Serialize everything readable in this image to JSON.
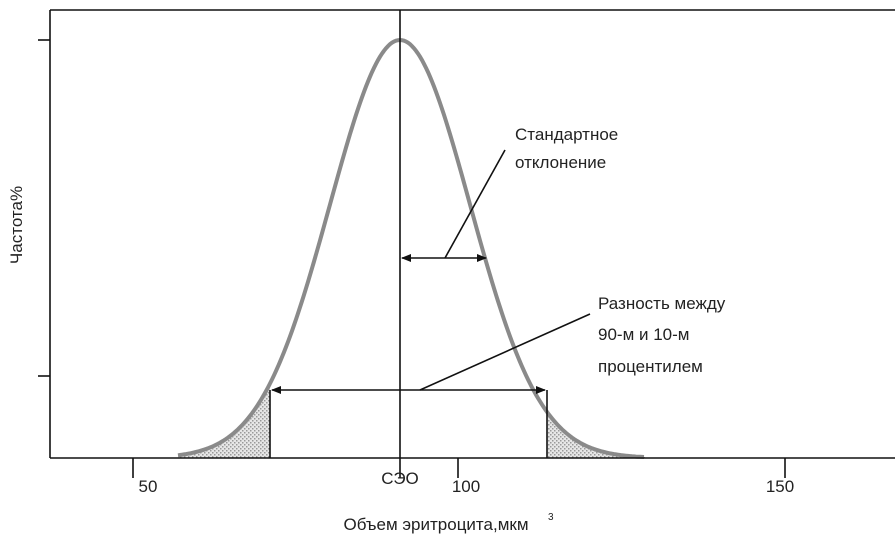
{
  "y_axis_label": "Частота%",
  "x_axis": {
    "label": "Объем эритроцита,мкм",
    "label_superscript": "3",
    "tick_labels": [
      "50",
      "100",
      "150"
    ],
    "center_label": "СЭО"
  },
  "annotations": {
    "standard_deviation": [
      "Стандартное",
      "отклонение"
    ],
    "percentile_range": [
      "Разность между",
      "90-м и 10-м",
      "процентилем"
    ]
  }
}
